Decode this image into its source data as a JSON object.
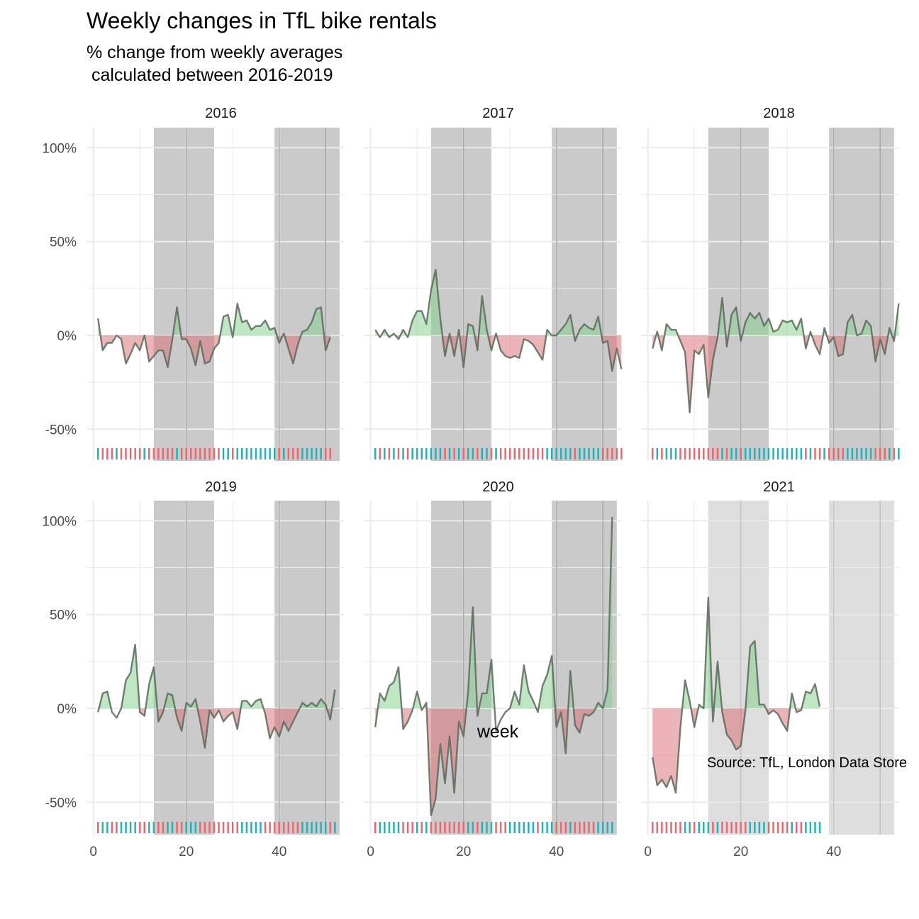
{
  "title": "Weekly changes in TfL bike rentals",
  "subtitle_line1": "% change from weekly averages",
  "subtitle_line2": " calculated between 2016-2019",
  "caption": "Source: TfL, London Data Store",
  "colors": {
    "above": "#7fcf8a",
    "below": "#d9696f",
    "line": "#5a6a5a",
    "rug_above": "#1fb3bb",
    "rug_below": "#f0656a",
    "shade": "#b3b3b3",
    "grid": "#ebebeb"
  },
  "chart_data": {
    "type": "area",
    "xlabel": "week",
    "ylabel": "",
    "xlim": [
      0,
      54
    ],
    "ylim": [
      -65,
      110
    ],
    "xticks": [
      0,
      20,
      40
    ],
    "yticks": [
      -50,
      0,
      50,
      100
    ],
    "ytick_labels": [
      "-50%",
      "0%",
      "50%",
      "100%"
    ],
    "shaded_weeks": [
      [
        13,
        26
      ],
      [
        39,
        53
      ]
    ],
    "panels": [
      {
        "year": "2016",
        "label": "2016",
        "dim_shade": false,
        "x_tick_labels": false,
        "values": [
          9,
          -8,
          -4,
          -4,
          0,
          -2,
          -15,
          -10,
          -4,
          -8,
          0,
          -14,
          -11,
          -8,
          -8,
          -17,
          -2,
          15,
          -2,
          -2,
          -7,
          -16,
          -3,
          -15,
          -14,
          -7,
          -4,
          10,
          11,
          -1,
          17,
          7,
          8,
          3,
          5,
          5,
          8,
          3,
          4,
          -4,
          1,
          -7,
          -15,
          -5,
          2,
          3,
          7,
          14,
          15,
          -8,
          -1
        ]
      },
      {
        "year": "2017",
        "label": "2017",
        "dim_shade": false,
        "x_tick_labels": false,
        "values": [
          3,
          -1,
          3,
          -1,
          1,
          -2,
          3,
          -1,
          8,
          13,
          13,
          6,
          24,
          35,
          9,
          -11,
          1,
          -11,
          3,
          -17,
          6,
          5,
          -8,
          21,
          3,
          -8,
          1,
          -8,
          -11,
          -12,
          -11,
          -12,
          -2,
          -3,
          -5,
          -9,
          -13,
          3,
          0,
          0,
          3,
          6,
          11,
          -3,
          3,
          6,
          4,
          3,
          10,
          -4,
          -3,
          -19,
          -7,
          -18
        ]
      },
      {
        "year": "2018",
        "label": "2018",
        "dim_shade": false,
        "x_tick_labels": false,
        "values": [
          -7,
          2,
          -8,
          6,
          3,
          3,
          -3,
          -9,
          -41,
          -8,
          -10,
          -5,
          -33,
          -13,
          -1,
          20,
          -6,
          11,
          15,
          -3,
          7,
          12,
          9,
          12,
          5,
          9,
          2,
          3,
          8,
          7,
          8,
          3,
          9,
          -7,
          2,
          -5,
          -10,
          4,
          -4,
          -1,
          -11,
          -10,
          7,
          11,
          0,
          1,
          8,
          5,
          -14,
          -2,
          -10,
          4,
          -3,
          17
        ]
      },
      {
        "year": "2019",
        "label": "2019",
        "dim_shade": false,
        "x_tick_labels": true,
        "values": [
          -2,
          8,
          9,
          -2,
          -5,
          0,
          15,
          19,
          34,
          -2,
          -4,
          13,
          22,
          -7,
          -2,
          8,
          7,
          -5,
          -12,
          3,
          1,
          5,
          -7,
          -21,
          -1,
          -5,
          -1,
          -7,
          -4,
          -2,
          -11,
          4,
          4,
          1,
          4,
          5,
          -3,
          -16,
          -10,
          -15,
          -7,
          -12,
          -7,
          -2,
          3,
          1,
          3,
          1,
          5,
          2,
          -6,
          10
        ]
      },
      {
        "year": "2020",
        "label": "2020",
        "dim_shade": false,
        "x_tick_labels": true,
        "values": [
          -10,
          8,
          4,
          12,
          14,
          22,
          -11,
          -7,
          -1,
          9,
          -1,
          3,
          -57,
          -48,
          -19,
          -40,
          -15,
          -45,
          -7,
          -15,
          9,
          54,
          -4,
          8,
          8,
          26,
          -12,
          -6,
          -2,
          0,
          9,
          2,
          23,
          9,
          4,
          -2,
          12,
          18,
          28,
          -10,
          -2,
          -24,
          20,
          -9,
          -13,
          -3,
          -4,
          -2,
          3,
          0,
          10,
          102
        ]
      },
      {
        "year": "2021",
        "label": "2021",
        "dim_shade": true,
        "x_tick_labels": true,
        "values": [
          -26,
          -41,
          -38,
          -42,
          -36,
          -45,
          -10,
          15,
          4,
          -10,
          2,
          0,
          59,
          -7,
          25,
          -2,
          -14,
          -17,
          -22,
          -20,
          -1,
          33,
          36,
          2,
          2,
          -3,
          -1,
          -3,
          -8,
          -12,
          8,
          -2,
          -1,
          9,
          8,
          13,
          1
        ]
      }
    ]
  }
}
